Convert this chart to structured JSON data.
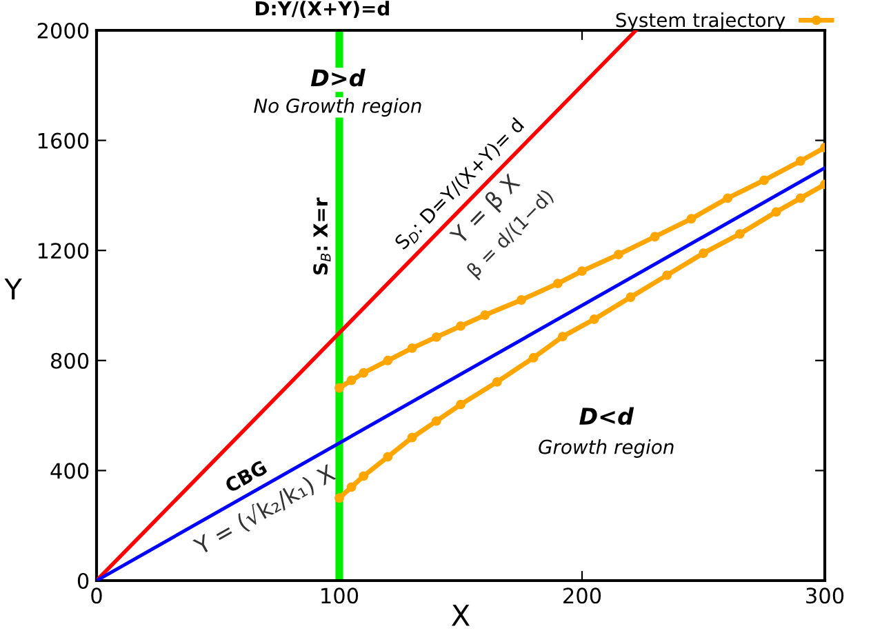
{
  "chart_data": {
    "type": "line",
    "xlabel": "X",
    "ylabel": "Y",
    "xlim": [
      0,
      300
    ],
    "xticks": [
      0,
      100,
      200,
      300
    ],
    "ylim": [
      0,
      2000
    ],
    "yticks": [
      0,
      400,
      800,
      1200,
      1600,
      2000
    ],
    "grid": false,
    "legend": "top right",
    "series": [
      {
        "color": "#ff0000",
        "x": [
          0,
          222.2
        ],
        "values": [
          0,
          2000
        ],
        "marker": "none"
      },
      {
        "color": "#0000ff",
        "x": [
          0,
          300
        ],
        "values": [
          0,
          1500
        ],
        "marker": "none"
      },
      {
        "name": "System trajectory",
        "color": "#ffa500",
        "marker": "circle",
        "x": [
          100,
          105,
          110,
          120,
          130,
          140,
          150,
          160,
          175,
          190,
          200,
          215,
          230,
          245,
          260,
          275,
          290,
          300
        ],
        "values": [
          700,
          728,
          755,
          800,
          845,
          885,
          925,
          965,
          1020,
          1080,
          1125,
          1185,
          1250,
          1315,
          1390,
          1455,
          1525,
          1574
        ]
      },
      {
        "color": "#ffa500",
        "marker": "circle",
        "x": [
          100,
          105,
          110,
          120,
          130,
          140,
          150,
          165,
          180,
          192,
          205,
          220,
          235,
          250,
          265,
          280,
          290,
          300
        ],
        "values": [
          300,
          340,
          380,
          450,
          520,
          580,
          640,
          722,
          810,
          887,
          950,
          1030,
          1110,
          1190,
          1260,
          1340,
          1390,
          1440
        ]
      }
    ],
    "ref_lines": [
      {
        "axis": "x",
        "value": 100,
        "label": "S$_{B}$: X=r",
        "color": "#00ee00"
      }
    ],
    "annotations": [
      "D:Y/(X+Y)=d",
      "D>d",
      "No Growth region",
      "D<d",
      "Growth region",
      "S$_{D}$: D=Y/(X+Y)= d",
      "Y = β X",
      "β = d/(1−d)",
      "CBG",
      "Y = (√k₂/k₁) X"
    ]
  }
}
